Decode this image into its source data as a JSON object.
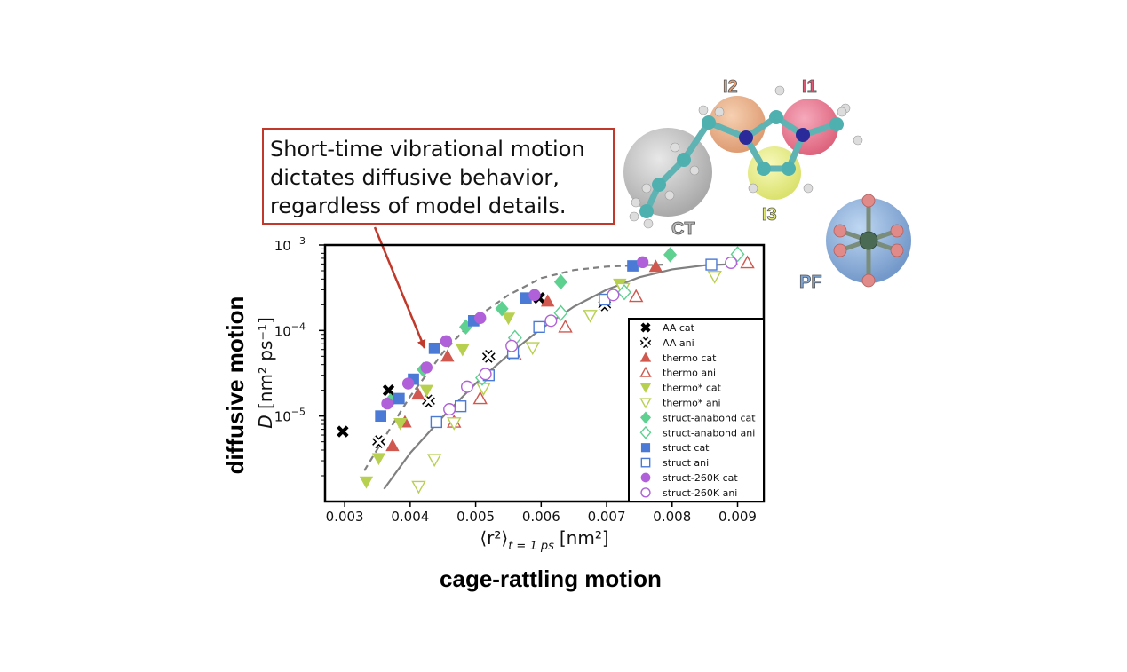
{
  "figure": {
    "callout_lines": [
      "Short-time vibrational motion",
      "dictates diffusive behavior,",
      "regardless of model details."
    ],
    "big_ylabel": "diffusive motion",
    "big_xlabel": "cage-rattling motion",
    "molecule_labels": {
      "I2": "I2",
      "I1": "I1",
      "I3": "I3",
      "CT": "CT",
      "PF": "PF"
    },
    "colors": {
      "callout_border": "#c0392b",
      "arrow": "#c0392b",
      "I2": "#e8a070",
      "I1": "#e05a78",
      "I3": "#e2e86a",
      "CT": "#b8b8b8",
      "PF": "#7ea6d6"
    }
  },
  "chart_data": {
    "type": "scatter",
    "title": "",
    "xlabel_prefix": "⟨r²⟩",
    "xlabel_sub": "t = 1 ps",
    "xlabel_unit": "[nm²]",
    "ylabel_symbol": "D",
    "ylabel_unit": "[nm² ps⁻¹]",
    "xlim": [
      0.0027,
      0.0094
    ],
    "ylim_log10": [
      -6.0,
      -3.0
    ],
    "y_scale": "log",
    "xticks": [
      0.003,
      0.004,
      0.005,
      0.006,
      0.007,
      0.008,
      0.009
    ],
    "xtick_labels": [
      "0.003",
      "0.004",
      "0.005",
      "0.006",
      "0.007",
      "0.008",
      "0.009"
    ],
    "yticks_log10": [
      -5,
      -4,
      -3
    ],
    "ytick_labels": [
      "10",
      "10",
      "10"
    ],
    "ytick_exponents": [
      "−5",
      "−4",
      "−3"
    ],
    "legend_position": "right",
    "fits": [
      {
        "name": "",
        "style": "dashed",
        "color": "#808080",
        "points": [
          [
            0.0033,
            2.3e-06
          ],
          [
            0.0036,
            5.5e-06
          ],
          [
            0.004,
            1.7e-05
          ],
          [
            0.0045,
            5.5e-05
          ],
          [
            0.005,
            0.00014
          ],
          [
            0.0055,
            0.00026
          ],
          [
            0.006,
            0.00041
          ],
          [
            0.0065,
            0.00051
          ],
          [
            0.007,
            0.00056
          ],
          [
            0.0075,
            0.00058
          ],
          [
            0.0079,
            0.00059
          ]
        ]
      },
      {
        "name": "",
        "style": "solid",
        "color": "#808080",
        "points": [
          [
            0.0036,
            1.4e-06
          ],
          [
            0.004,
            3.7e-06
          ],
          [
            0.0045,
            9.8e-06
          ],
          [
            0.005,
            2.4e-05
          ],
          [
            0.0055,
            5.2e-05
          ],
          [
            0.006,
            0.000105
          ],
          [
            0.0065,
            0.00019
          ],
          [
            0.007,
            0.0003
          ],
          [
            0.0075,
            0.00042
          ],
          [
            0.008,
            0.00052
          ],
          [
            0.0085,
            0.00058
          ],
          [
            0.009,
            0.0006
          ]
        ]
      }
    ],
    "series": [
      {
        "name": "AA cat",
        "marker": "x",
        "filled": true,
        "color": "#000000",
        "points": [
          [
            0.00297,
            6.6e-06
          ],
          [
            0.00367,
            2e-05
          ],
          [
            0.00597,
            0.00024
          ]
        ]
      },
      {
        "name": "AA ani",
        "marker": "x",
        "filled": false,
        "color": "#000000",
        "points": [
          [
            0.00352,
            5e-06
          ],
          [
            0.00428,
            1.5e-05
          ],
          [
            0.0052,
            5e-05
          ],
          [
            0.00697,
            0.0002
          ]
        ]
      },
      {
        "name": "thermo cat",
        "marker": "triangle-up",
        "filled": true,
        "color": "#d0584f",
        "points": [
          [
            0.00373,
            4.5e-06
          ],
          [
            0.00392,
            8.5e-06
          ],
          [
            0.00412,
            1.8e-05
          ],
          [
            0.00457,
            5e-05
          ],
          [
            0.0061,
            0.00022
          ],
          [
            0.00775,
            0.00056
          ]
        ]
      },
      {
        "name": "thermo ani",
        "marker": "triangle-up",
        "filled": false,
        "color": "#d0584f",
        "points": [
          [
            0.00467,
            8.5e-06
          ],
          [
            0.00507,
            1.6e-05
          ],
          [
            0.0056,
            5.2e-05
          ],
          [
            0.00637,
            0.00011
          ],
          [
            0.00745,
            0.00025
          ],
          [
            0.00915,
            0.00062
          ]
        ]
      },
      {
        "name": "thermo* cat",
        "marker": "triangle-down",
        "filled": true,
        "color": "#b8d050",
        "points": [
          [
            0.00333,
            1.7e-06
          ],
          [
            0.00352,
            3.2e-06
          ],
          [
            0.00385,
            8.2e-06
          ],
          [
            0.00425,
            2e-05
          ],
          [
            0.0048,
            6e-05
          ],
          [
            0.0055,
            0.00014
          ],
          [
            0.0072,
            0.00035
          ]
        ]
      },
      {
        "name": "thermo* ani",
        "marker": "triangle-down",
        "filled": false,
        "color": "#b8d050",
        "points": [
          [
            0.00413,
            1.5e-06
          ],
          [
            0.00437,
            3.1e-06
          ],
          [
            0.00467,
            8.3e-06
          ],
          [
            0.00512,
            2.1e-05
          ],
          [
            0.00587,
            6.3e-05
          ],
          [
            0.00675,
            0.00015
          ],
          [
            0.00725,
            0.00031
          ],
          [
            0.00865,
            0.00043
          ]
        ]
      },
      {
        "name": "struct-anabond cat",
        "marker": "diamond",
        "filled": true,
        "color": "#5ed090",
        "points": [
          [
            0.0037,
            1.5e-05
          ],
          [
            0.0042,
            3.5e-05
          ],
          [
            0.00485,
            0.00011
          ],
          [
            0.0054,
            0.00018
          ],
          [
            0.0063,
            0.00037
          ],
          [
            0.00797,
            0.00077
          ]
        ]
      },
      {
        "name": "struct-anabond ani",
        "marker": "diamond",
        "filled": false,
        "color": "#5ed090",
        "points": [
          [
            0.0051,
            2.8e-05
          ],
          [
            0.0056,
            8.2e-05
          ],
          [
            0.0063,
            0.00016
          ],
          [
            0.00727,
            0.00028
          ],
          [
            0.009,
            0.00078
          ]
        ]
      },
      {
        "name": "struct cat",
        "marker": "square",
        "filled": true,
        "color": "#4a7ad6",
        "points": [
          [
            0.00355,
            1e-05
          ],
          [
            0.00383,
            1.6e-05
          ],
          [
            0.00405,
            2.7e-05
          ],
          [
            0.00437,
            6.2e-05
          ],
          [
            0.00497,
            0.00013
          ],
          [
            0.00577,
            0.00024
          ],
          [
            0.0074,
            0.00057
          ]
        ]
      },
      {
        "name": "struct ani",
        "marker": "square",
        "filled": false,
        "color": "#4a7ad6",
        "points": [
          [
            0.0044,
            8.5e-06
          ],
          [
            0.00477,
            1.3e-05
          ],
          [
            0.0052,
            3e-05
          ],
          [
            0.00557,
            5.5e-05
          ],
          [
            0.00597,
            0.00011
          ],
          [
            0.00697,
            0.00023
          ],
          [
            0.0086,
            0.00059
          ]
        ]
      },
      {
        "name": "struct-260K cat",
        "marker": "circle",
        "filled": true,
        "color": "#b060d8",
        "points": [
          [
            0.00365,
            1.4e-05
          ],
          [
            0.00397,
            2.4e-05
          ],
          [
            0.00425,
            3.7e-05
          ],
          [
            0.00455,
            7.5e-05
          ],
          [
            0.00507,
            0.00014
          ],
          [
            0.0059,
            0.00026
          ],
          [
            0.00755,
            0.00063
          ]
        ]
      },
      {
        "name": "struct-260K ani",
        "marker": "circle",
        "filled": false,
        "color": "#b060d8",
        "points": [
          [
            0.0046,
            1.2e-05
          ],
          [
            0.00487,
            2.2e-05
          ],
          [
            0.00515,
            3.1e-05
          ],
          [
            0.00555,
            6.6e-05
          ],
          [
            0.00615,
            0.00013
          ],
          [
            0.0071,
            0.00026
          ],
          [
            0.0089,
            0.00062
          ]
        ]
      }
    ]
  }
}
